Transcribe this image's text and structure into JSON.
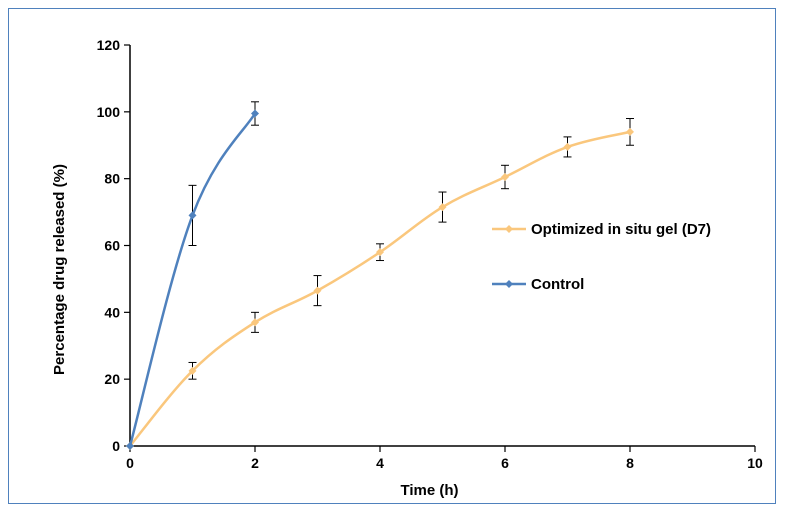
{
  "chart_data": {
    "type": "line",
    "title": "",
    "xlabel": "Time (h)",
    "ylabel": "Percentage drug released (%)",
    "xlim": [
      0,
      10
    ],
    "ylim": [
      0,
      120
    ],
    "x_ticks": [
      0,
      2,
      4,
      6,
      8,
      10
    ],
    "y_ticks": [
      0,
      20,
      40,
      60,
      80,
      100,
      120
    ],
    "grid": false,
    "legend_position": "right",
    "series": [
      {
        "name": "Optimized in situ gel (D7)",
        "color": "#fac77d",
        "x": [
          0,
          1,
          2,
          3,
          4,
          5,
          6,
          7,
          8
        ],
        "values": [
          0,
          22.5,
          37,
          46.5,
          58,
          71.5,
          80.5,
          89.5,
          94
        ],
        "errors": [
          0,
          2.5,
          3,
          4.5,
          2.5,
          4.5,
          3.5,
          3,
          4
        ]
      },
      {
        "name": "Control",
        "color": "#4f81bd",
        "x": [
          0,
          1,
          2
        ],
        "values": [
          0,
          69,
          99.5
        ],
        "errors": [
          0,
          9,
          3.5
        ]
      }
    ]
  }
}
